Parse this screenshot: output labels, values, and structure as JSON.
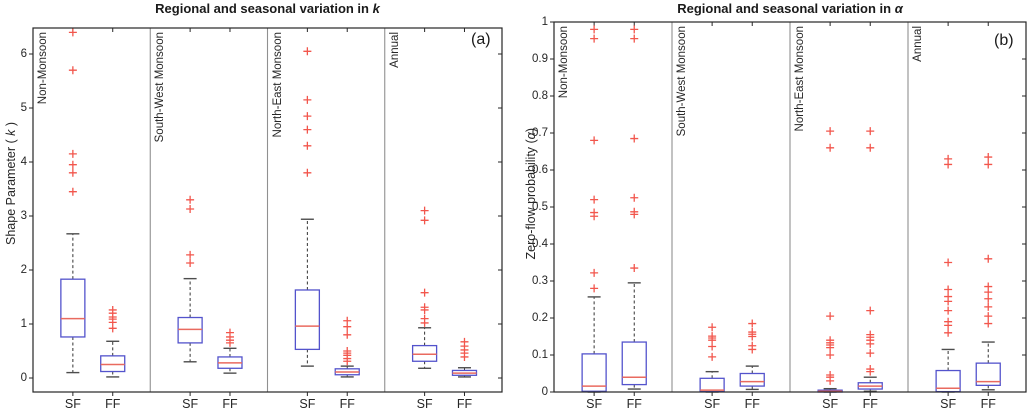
{
  "figure": {
    "background": "#ffffff"
  },
  "colors": {
    "box_edge": "#5353cc",
    "median": "#e96a5f",
    "outlier": "#f2564c",
    "whisker": "#333333",
    "cap": "#4d4d4d",
    "axis": "#262626",
    "divider": "#909090",
    "text": "#262626"
  },
  "chart_data": [
    {
      "type": "boxplot",
      "panel_label": "(a)",
      "title_pre": "Regional and seasonal variation in ",
      "title_var": "k",
      "ylabel_pre": "Shape Parameter ( ",
      "ylabel_var": "k",
      "ylabel_post": " )",
      "ylim": [
        -0.28,
        6.5
      ],
      "grid": false,
      "legend": null,
      "yticks": [
        {
          "v": 0,
          "label": "0"
        },
        {
          "v": 1,
          "label": "1"
        },
        {
          "v": 2,
          "label": "2"
        },
        {
          "v": 3,
          "label": "3"
        },
        {
          "v": 4,
          "label": "4"
        },
        {
          "v": 5,
          "label": "5"
        },
        {
          "v": 6,
          "label": "6"
        }
      ],
      "groups": [
        {
          "label": "Non-Monsoon",
          "boxes": [
            {
              "name": "SF",
              "whislo": 0.1,
              "q1": 0.76,
              "med": 1.1,
              "q3": 1.83,
              "whishi": 2.67,
              "outliers": [
                3.45,
                3.8,
                3.95,
                4.15,
                5.7,
                6.4
              ]
            },
            {
              "name": "FF",
              "whislo": 0.02,
              "q1": 0.12,
              "med": 0.25,
              "q3": 0.41,
              "whishi": 0.68,
              "outliers": [
                0.92,
                1.03,
                1.09,
                1.13,
                1.2,
                1.26
              ]
            }
          ]
        },
        {
          "label": "South-West Monsoon",
          "boxes": [
            {
              "name": "SF",
              "whislo": 0.3,
              "q1": 0.65,
              "med": 0.9,
              "q3": 1.12,
              "whishi": 1.84,
              "outliers": [
                2.13,
                2.28,
                3.13,
                3.3
              ]
            },
            {
              "name": "FF",
              "whislo": 0.09,
              "q1": 0.18,
              "med": 0.28,
              "q3": 0.39,
              "whishi": 0.55,
              "outliers": [
                0.65,
                0.7,
                0.76,
                0.84
              ]
            }
          ]
        },
        {
          "label": "North-East Monsoon",
          "boxes": [
            {
              "name": "SF",
              "whislo": 0.22,
              "q1": 0.53,
              "med": 0.96,
              "q3": 1.63,
              "whishi": 2.94,
              "outliers": [
                3.8,
                4.3,
                4.6,
                4.85,
                5.15,
                6.05
              ]
            },
            {
              "name": "FF",
              "whislo": 0.02,
              "q1": 0.06,
              "med": 0.11,
              "q3": 0.17,
              "whishi": 0.22,
              "outliers": [
                0.31,
                0.36,
                0.42,
                0.46,
                0.5,
                0.8,
                0.95,
                1.06
              ]
            }
          ]
        },
        {
          "label": "Annual",
          "boxes": [
            {
              "name": "SF",
              "whislo": 0.18,
              "q1": 0.31,
              "med": 0.44,
              "q3": 0.6,
              "whishi": 0.93,
              "outliers": [
                1.02,
                1.1,
                1.26,
                1.31,
                1.58,
                2.92,
                3.1
              ]
            },
            {
              "name": "FF",
              "whislo": 0.02,
              "q1": 0.05,
              "med": 0.09,
              "q3": 0.14,
              "whishi": 0.19,
              "outliers": [
                0.39,
                0.46,
                0.52,
                0.59,
                0.67
              ]
            }
          ]
        }
      ]
    },
    {
      "type": "boxplot",
      "panel_label": "(b)",
      "title_pre": "Regional and seasonal variation in ",
      "title_var": "α",
      "ylabel_pre": "Zero-flow probability (",
      "ylabel_var": "α",
      "ylabel_post": ")",
      "ylim": [
        0,
        1
      ],
      "grid": false,
      "legend": null,
      "yticks": [
        {
          "v": 0.0,
          "label": "0"
        },
        {
          "v": 0.1,
          "label": "0.1"
        },
        {
          "v": 0.2,
          "label": "0.2"
        },
        {
          "v": 0.3,
          "label": "0.3"
        },
        {
          "v": 0.4,
          "label": "0.4"
        },
        {
          "v": 0.5,
          "label": "0.5"
        },
        {
          "v": 0.6,
          "label": "0.6"
        },
        {
          "v": 0.7,
          "label": "0.7"
        },
        {
          "v": 0.8,
          "label": "0.8"
        },
        {
          "v": 0.9,
          "label": "0.9"
        },
        {
          "v": 1.0,
          "label": "1"
        }
      ],
      "groups": [
        {
          "label": "Non-Monsoon",
          "boxes": [
            {
              "name": "SF",
              "whislo": 0.0,
              "q1": 0.002,
              "med": 0.016,
              "q3": 0.103,
              "whishi": 0.257,
              "outliers": [
                0.28,
                0.322,
                0.475,
                0.485,
                0.52,
                0.68,
                0.955,
                0.98
              ]
            },
            {
              "name": "FF",
              "whislo": 0.008,
              "q1": 0.02,
              "med": 0.04,
              "q3": 0.135,
              "whishi": 0.295,
              "outliers": [
                0.335,
                0.48,
                0.487,
                0.525,
                0.685,
                0.955,
                0.98
              ]
            }
          ]
        },
        {
          "label": "South-West Monsoon",
          "boxes": [
            {
              "name": "SF",
              "whislo": 0.0,
              "q1": 0.001,
              "med": 0.005,
              "q3": 0.037,
              "whishi": 0.055,
              "outliers": [
                0.095,
                0.123,
                0.14,
                0.146,
                0.151,
                0.175
              ]
            },
            {
              "name": "FF",
              "whislo": 0.007,
              "q1": 0.016,
              "med": 0.028,
              "q3": 0.05,
              "whishi": 0.07,
              "outliers": [
                0.115,
                0.125,
                0.15,
                0.156,
                0.162,
                0.185
              ]
            }
          ]
        },
        {
          "label": "North-East Monsoon",
          "boxes": [
            {
              "name": "SF",
              "whislo": 0.0,
              "q1": 0.0,
              "med": 0.002,
              "q3": 0.005,
              "whishi": 0.009,
              "outliers": [
                0.03,
                0.04,
                0.046,
                0.1,
                0.12,
                0.127,
                0.133,
                0.14,
                0.205,
                0.66,
                0.705
              ]
            },
            {
              "name": "FF",
              "whislo": 0.002,
              "q1": 0.008,
              "med": 0.016,
              "q3": 0.025,
              "whishi": 0.04,
              "outliers": [
                0.055,
                0.062,
                0.105,
                0.13,
                0.14,
                0.148,
                0.155,
                0.22,
                0.66,
                0.705
              ]
            }
          ]
        },
        {
          "label": "Annual",
          "boxes": [
            {
              "name": "SF",
              "whislo": 0.0,
              "q1": 0.001,
              "med": 0.01,
              "q3": 0.058,
              "whishi": 0.115,
              "outliers": [
                0.16,
                0.18,
                0.19,
                0.22,
                0.245,
                0.258,
                0.277,
                0.35,
                0.615,
                0.63
              ]
            },
            {
              "name": "FF",
              "whislo": 0.006,
              "q1": 0.018,
              "med": 0.028,
              "q3": 0.078,
              "whishi": 0.135,
              "outliers": [
                0.185,
                0.205,
                0.23,
                0.252,
                0.27,
                0.285,
                0.36,
                0.615,
                0.635
              ]
            }
          ]
        }
      ]
    }
  ]
}
